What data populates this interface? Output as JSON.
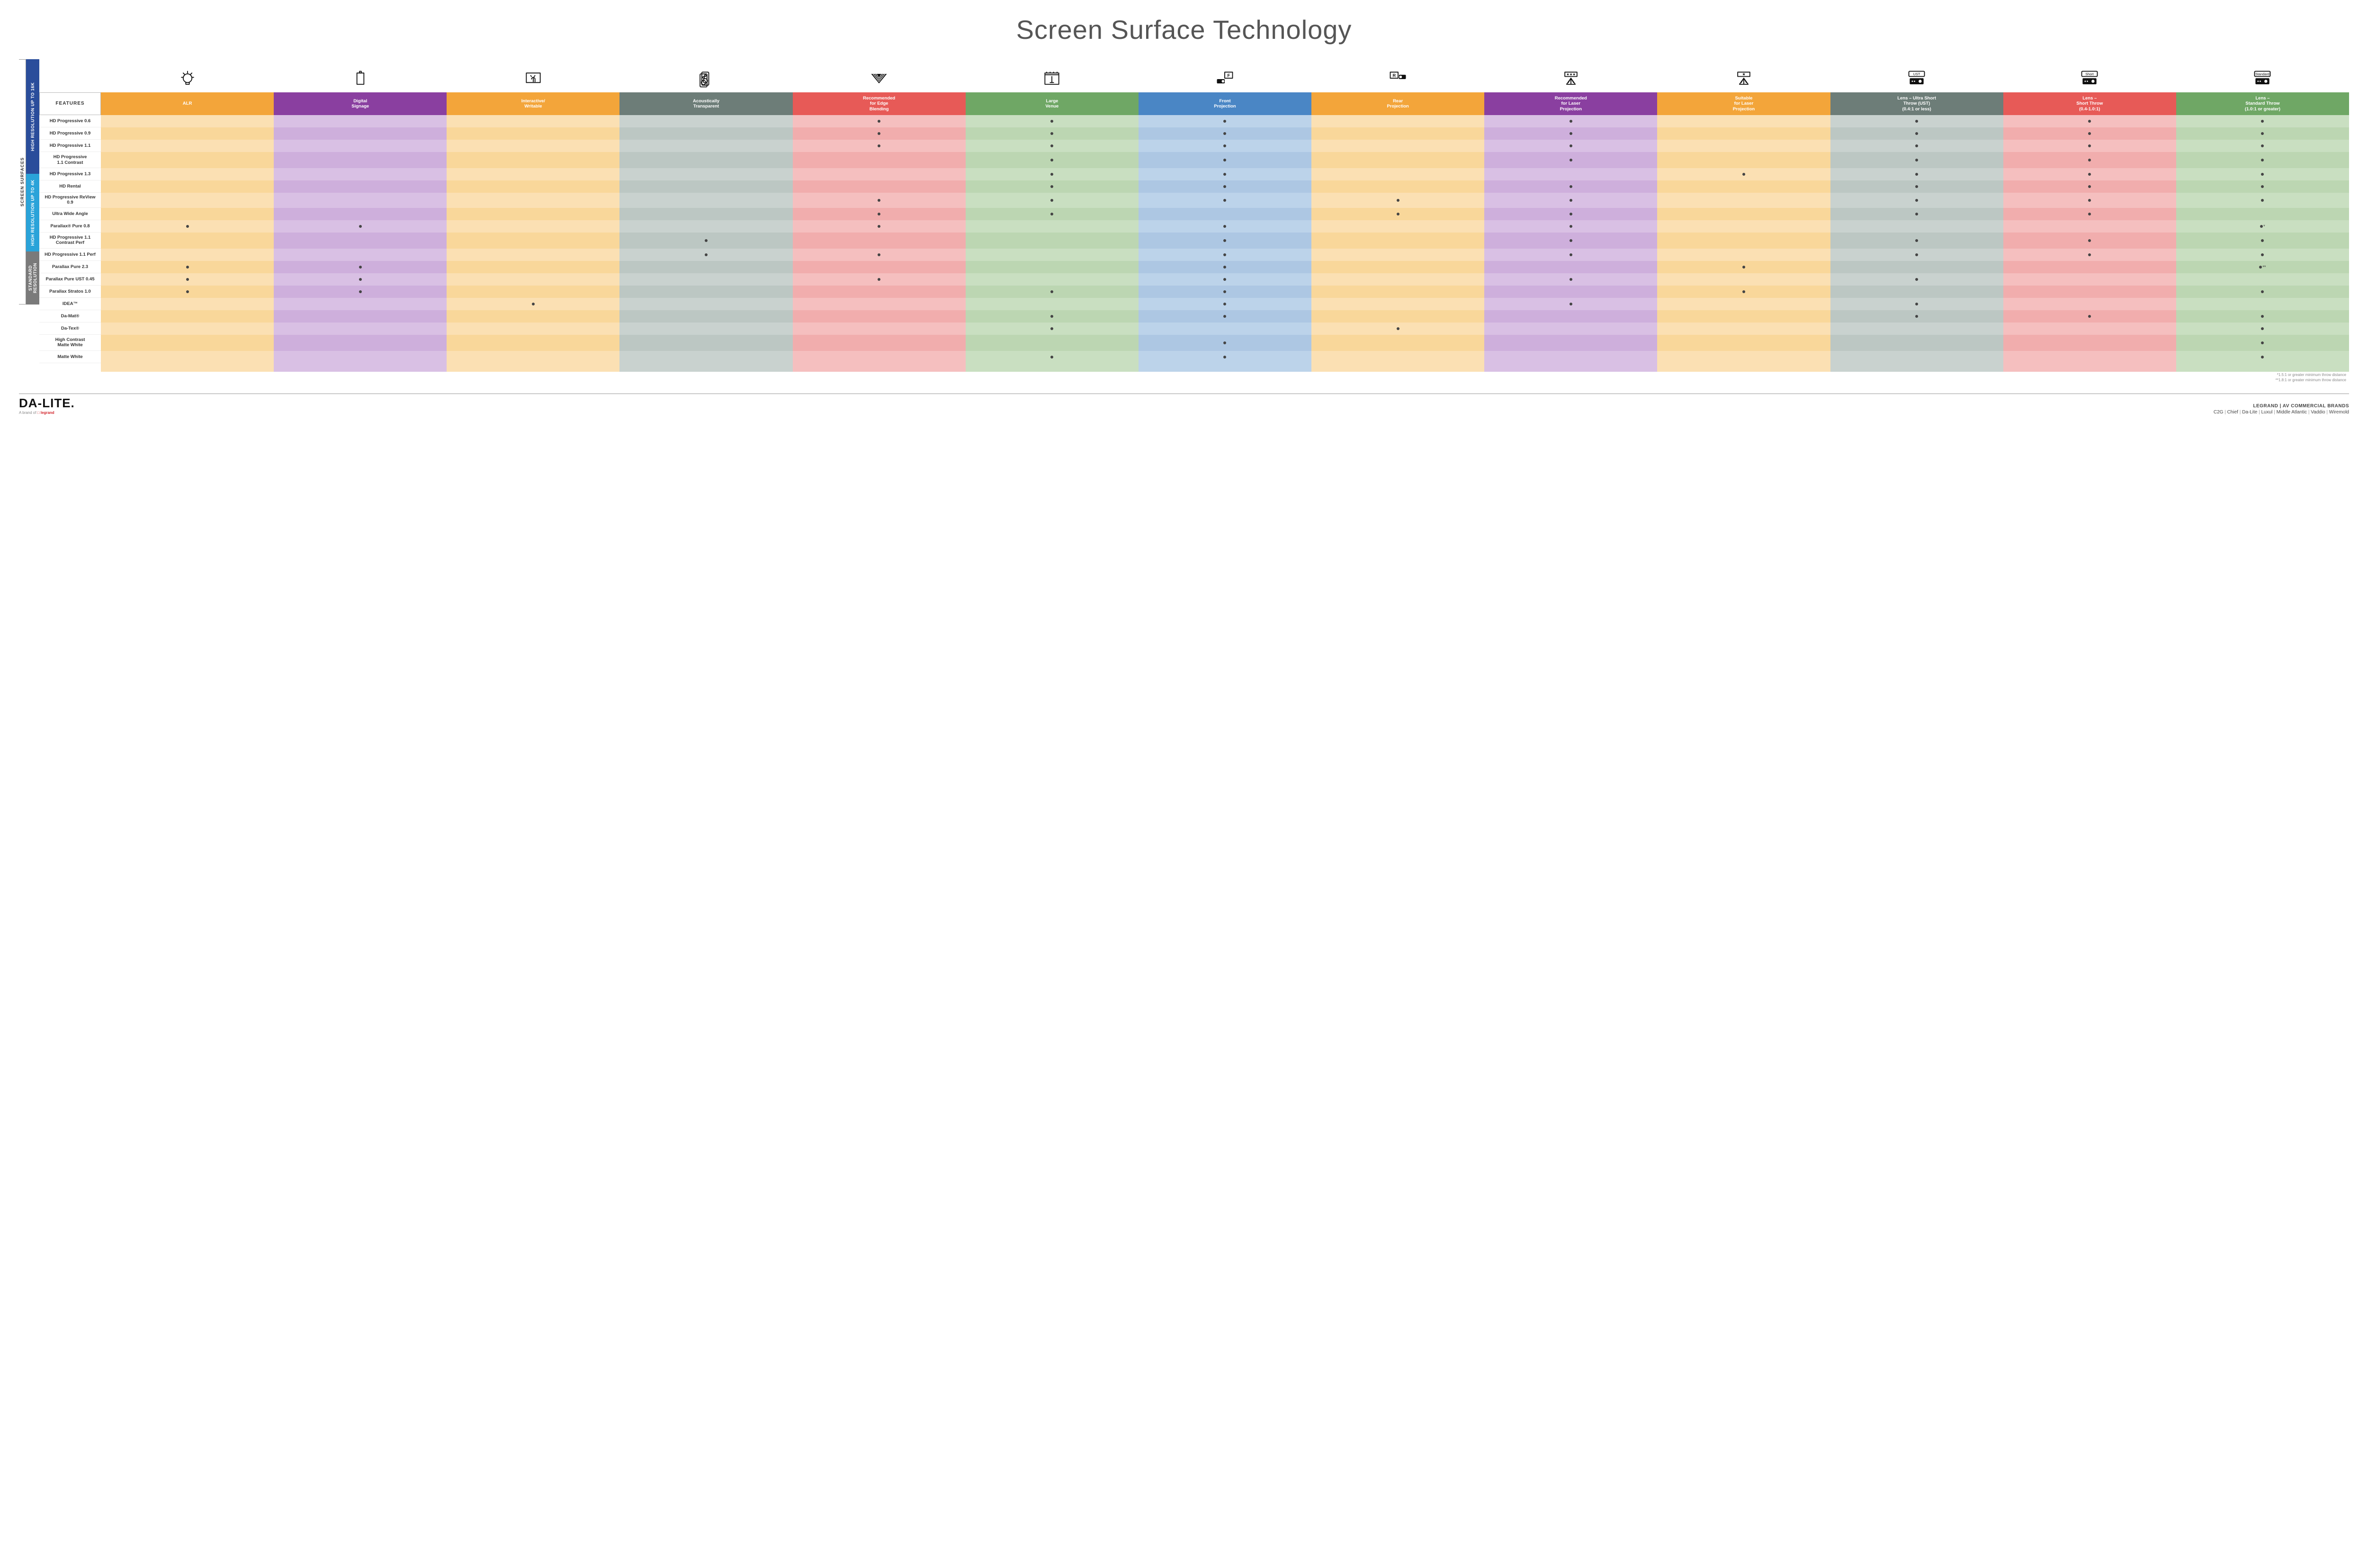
{
  "title": "Screen Surface Technology",
  "featuresLabel": "FEATURES",
  "sideOuter": "SCREEN SURFACES",
  "columns": [
    {
      "key": "alr",
      "label": "ALR",
      "color": "#f3a53a",
      "tint": "#fbe0b3",
      "tintAlt": "#f9d79a",
      "icon": "bulb"
    },
    {
      "key": "ds",
      "label": "Digital\nSignage",
      "color": "#8a3fa0",
      "tint": "#d9c0e4",
      "tintAlt": "#ceafdc",
      "icon": "signage"
    },
    {
      "key": "iw",
      "label": "Interactive/\nWritable",
      "color": "#f3a53a",
      "tint": "#fbe0b3",
      "tintAlt": "#f9d79a",
      "icon": "touch"
    },
    {
      "key": "at",
      "label": "Acoustically\nTransparent",
      "color": "#6d7d78",
      "tint": "#c9d2cf",
      "tintAlt": "#bcc7c3",
      "icon": "speaker"
    },
    {
      "key": "eb",
      "label": "Recommended\nfor Edge\nBlending",
      "color": "#e75a57",
      "tint": "#f5bfbf",
      "tintAlt": "#f1adad",
      "icon": "blend"
    },
    {
      "key": "lv",
      "label": "Large\nVenue",
      "color": "#6fa765",
      "tint": "#c9dfc1",
      "tintAlt": "#bcd6b2",
      "icon": "venue"
    },
    {
      "key": "fp",
      "label": "Front\nProjection",
      "color": "#4a86c5",
      "tint": "#bcd3ea",
      "tintAlt": "#adc7e3",
      "icon": "front"
    },
    {
      "key": "rp",
      "label": "Rear\nProjection",
      "color": "#f3a53a",
      "tint": "#fbe0b3",
      "tintAlt": "#f9d79a",
      "icon": "rear"
    },
    {
      "key": "rlp",
      "label": "Recommended\nfor Laser\nProjection",
      "color": "#8a3fa0",
      "tint": "#d9c0e4",
      "tintAlt": "#ceafdc",
      "icon": "laser3"
    },
    {
      "key": "slp",
      "label": "Suitable\nfor Laser\nProjection",
      "color": "#f3a53a",
      "tint": "#fbe0b3",
      "tintAlt": "#f9d79a",
      "icon": "laser1"
    },
    {
      "key": "ust",
      "label": "Lens – Ultra Short\nThrow (UST)\n(0.4:1 or less)",
      "color": "#6d7d78",
      "tint": "#c9d2cf",
      "tintAlt": "#bcc7c3",
      "icon": "proj-ust"
    },
    {
      "key": "st",
      "label": "Lens –\nShort Throw\n(0.4-1.0:1)",
      "color": "#e75a57",
      "tint": "#f5bfbf",
      "tintAlt": "#f1adad",
      "icon": "proj-short"
    },
    {
      "key": "std",
      "label": "Lens –\nStandard Throw\n(1.0:1 or greater)",
      "color": "#6fa765",
      "tint": "#c9dfc1",
      "tintAlt": "#bcd6b2",
      "icon": "proj-std"
    }
  ],
  "groups": [
    {
      "label": "HIGH RESOLUTION UP TO 16K",
      "color": "#2a4d9b",
      "rowStart": 0,
      "rowEnd": 9
    },
    {
      "label": "HIGH RESOLUTION UP TO 4K",
      "color": "#2aa3d9",
      "rowStart": 9,
      "rowEnd": 15
    },
    {
      "label": "STANDARD\nRESOLUTION",
      "color": "#7a7a7a",
      "rowStart": 15,
      "rowEnd": 19
    }
  ],
  "rows": [
    {
      "label": "HD Progressive 0.6",
      "dots": {
        "eb": "",
        "lv": "",
        "fp": "",
        "rlp": "",
        "ust": "",
        "st": "",
        "std": ""
      }
    },
    {
      "label": "HD Progressive 0.9",
      "dots": {
        "eb": "",
        "lv": "",
        "fp": "",
        "rlp": "",
        "ust": "",
        "st": "",
        "std": ""
      }
    },
    {
      "label": "HD Progressive 1.1",
      "dots": {
        "eb": "",
        "lv": "",
        "fp": "",
        "rlp": "",
        "ust": "",
        "st": "",
        "std": ""
      }
    },
    {
      "label": "HD Progressive\n1.1 Contrast",
      "dots": {
        "lv": "",
        "fp": "",
        "rlp": "",
        "ust": "",
        "st": "",
        "std": ""
      }
    },
    {
      "label": "HD Progressive 1.3",
      "dots": {
        "lv": "",
        "fp": "",
        "slp": "",
        "ust": "",
        "st": "",
        "std": ""
      }
    },
    {
      "label": "HD Rental",
      "dots": {
        "lv": "",
        "fp": "",
        "rlp": "",
        "ust": "",
        "st": "",
        "std": ""
      }
    },
    {
      "label": "HD Progressive ReView 0.9",
      "dots": {
        "eb": "",
        "lv": "",
        "fp": "",
        "rp": "",
        "rlp": "",
        "ust": "",
        "st": "",
        "std": ""
      }
    },
    {
      "label": "Ultra Wide Angle",
      "dots": {
        "eb": "",
        "lv": "",
        "rp": "",
        "rlp": "",
        "ust": "",
        "st": ""
      }
    },
    {
      "label": "Parallax® Pure 0.8",
      "dots": {
        "alr": "",
        "ds": "",
        "eb": "",
        "fp": "",
        "rlp": "",
        "std": "*"
      }
    },
    {
      "label": "HD Progressive 1.1\nContrast Perf",
      "dots": {
        "at": "",
        "fp": "",
        "rlp": "",
        "ust": "",
        "st": "",
        "std": ""
      }
    },
    {
      "label": "HD Progressive 1.1 Perf",
      "dots": {
        "at": "",
        "eb": "",
        "fp": "",
        "rlp": "",
        "ust": "",
        "st": "",
        "std": ""
      }
    },
    {
      "label": "Parallax Pure 2.3",
      "dots": {
        "alr": "",
        "ds": "",
        "fp": "",
        "slp": "",
        "std": "**"
      }
    },
    {
      "label": "Parallax Pure UST 0.45",
      "dots": {
        "alr": "",
        "ds": "",
        "eb": "",
        "fp": "",
        "rlp": "",
        "ust": ""
      }
    },
    {
      "label": "Parallax Stratos 1.0",
      "dots": {
        "alr": "",
        "ds": "",
        "lv": "",
        "fp": "",
        "slp": "",
        "std": ""
      }
    },
    {
      "label": "IDEA™",
      "dots": {
        "iw": "",
        "fp": "",
        "rlp": "",
        "ust": ""
      }
    },
    {
      "label": "Da-Mat®",
      "dots": {
        "lv": "",
        "fp": "",
        "ust": "",
        "st": "",
        "std": ""
      }
    },
    {
      "label": "Da-Tex®",
      "dots": {
        "lv": "",
        "rp": "",
        "std": ""
      }
    },
    {
      "label": "High Contrast\nMatte White",
      "dots": {
        "fp": "",
        "std": ""
      }
    },
    {
      "label": "Matte White",
      "dots": {
        "lv": "",
        "fp": "",
        "std": ""
      }
    }
  ],
  "footnotes": [
    "*1.5:1 or greater minimum throw distance",
    "**1.8:1 or greater minimum throw distance"
  ],
  "footer": {
    "logoMain": "DA-LITE.",
    "logoSub1": "A brand of ",
    "logoSub2": "legrand",
    "brandsTitle": "LEGRAND | AV COMMERCIAL BRANDS",
    "brands": [
      "C2G",
      "Chief",
      "Da-Lite",
      "Luxul",
      "Middle Atlantic",
      "Vaddio",
      "Wiremold"
    ]
  },
  "cellHeight": 26,
  "perfHeight": 34
}
